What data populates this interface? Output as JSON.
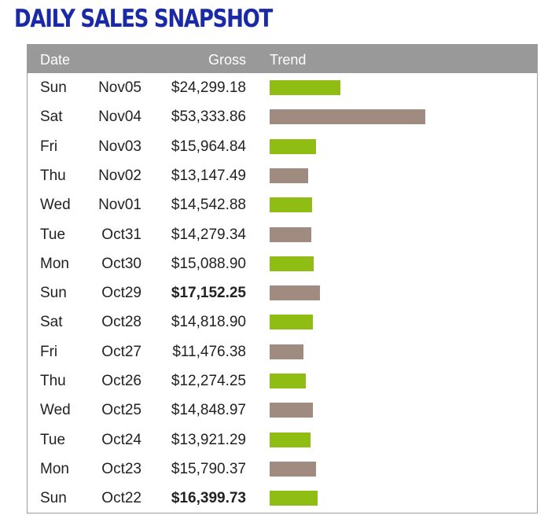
{
  "title": "DAILY SALES SNAPSHOT",
  "colors": {
    "title": "#1a2aa6",
    "header_bg": "#999999",
    "bar_green": "#8fbd13",
    "bar_taupe": "#a08b80"
  },
  "chart_data": {
    "type": "table",
    "columns": [
      "Date",
      "",
      "Gross",
      "Trend"
    ],
    "trend_scale_max": 53333.86,
    "rows": [
      {
        "day": "Sun",
        "date": "Nov05",
        "gross": "$24,299.18",
        "value": 24299.18,
        "bold": false,
        "bar_color": "green"
      },
      {
        "day": "Sat",
        "date": "Nov04",
        "gross": "$53,333.86",
        "value": 53333.86,
        "bold": false,
        "bar_color": "taupe"
      },
      {
        "day": "Fri",
        "date": "Nov03",
        "gross": "$15,964.84",
        "value": 15964.84,
        "bold": false,
        "bar_color": "green"
      },
      {
        "day": "Thu",
        "date": "Nov02",
        "gross": "$13,147.49",
        "value": 13147.49,
        "bold": false,
        "bar_color": "taupe"
      },
      {
        "day": "Wed",
        "date": "Nov01",
        "gross": "$14,542.88",
        "value": 14542.88,
        "bold": false,
        "bar_color": "green"
      },
      {
        "day": "Tue",
        "date": "Oct31",
        "gross": "$14,279.34",
        "value": 14279.34,
        "bold": false,
        "bar_color": "taupe"
      },
      {
        "day": "Mon",
        "date": "Oct30",
        "gross": "$15,088.90",
        "value": 15088.9,
        "bold": false,
        "bar_color": "green"
      },
      {
        "day": "Sun",
        "date": "Oct29",
        "gross": "$17,152.25",
        "value": 17152.25,
        "bold": true,
        "bar_color": "taupe"
      },
      {
        "day": "Sat",
        "date": "Oct28",
        "gross": "$14,818.90",
        "value": 14818.9,
        "bold": false,
        "bar_color": "green"
      },
      {
        "day": "Fri",
        "date": "Oct27",
        "gross": "$11,476.38",
        "value": 11476.38,
        "bold": false,
        "bar_color": "taupe"
      },
      {
        "day": "Thu",
        "date": "Oct26",
        "gross": "$12,274.25",
        "value": 12274.25,
        "bold": false,
        "bar_color": "green"
      },
      {
        "day": "Wed",
        "date": "Oct25",
        "gross": "$14,848.97",
        "value": 14848.97,
        "bold": false,
        "bar_color": "taupe"
      },
      {
        "day": "Tue",
        "date": "Oct24",
        "gross": "$13,921.29",
        "value": 13921.29,
        "bold": false,
        "bar_color": "green"
      },
      {
        "day": "Mon",
        "date": "Oct23",
        "gross": "$15,790.37",
        "value": 15790.37,
        "bold": false,
        "bar_color": "taupe"
      },
      {
        "day": "Sun",
        "date": "Oct22",
        "gross": "$16,399.73",
        "value": 16399.73,
        "bold": true,
        "bar_color": "green"
      }
    ]
  }
}
